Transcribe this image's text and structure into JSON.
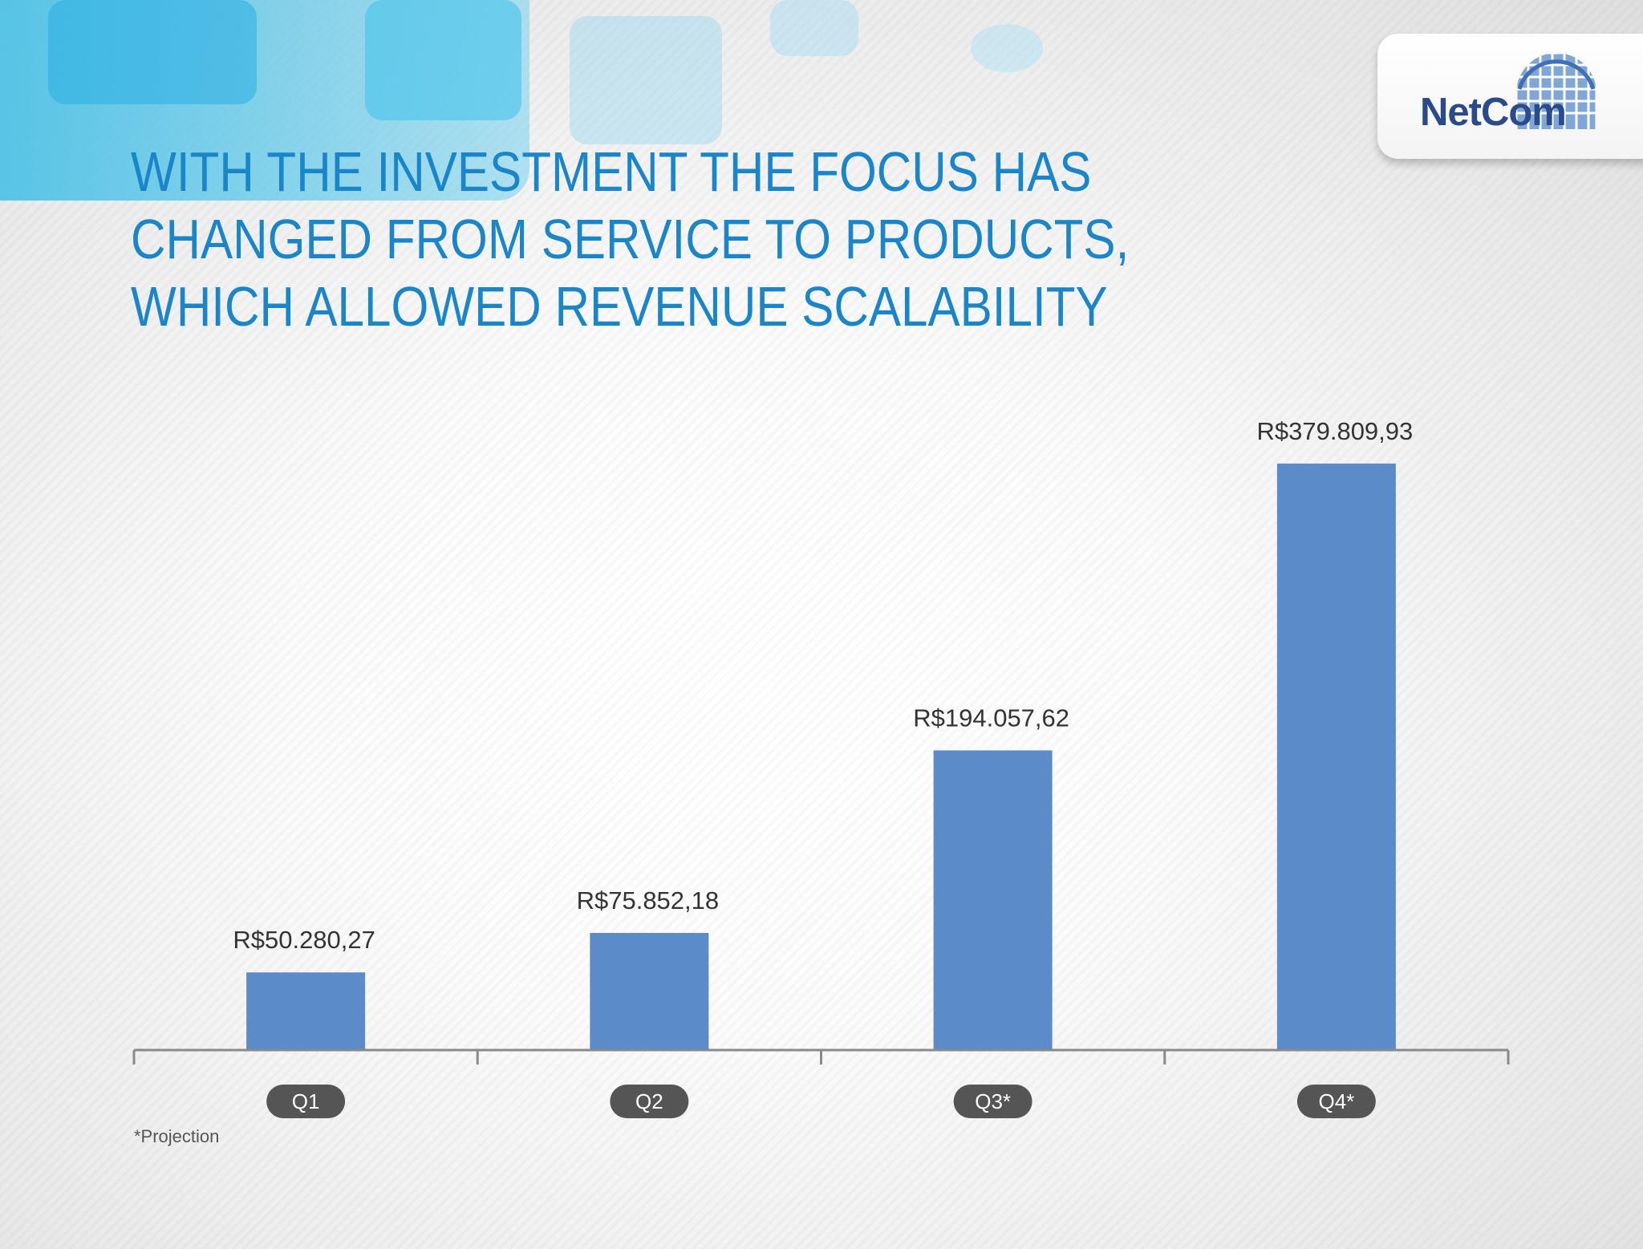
{
  "title_lines": [
    "WITH THE INVESTMENT THE FOCUS HAS",
    "CHANGED FROM SERVICE TO PRODUCTS,",
    "WHICH ALLOWED REVENUE SCALABILITY"
  ],
  "logo": {
    "text": "NetCom"
  },
  "footnote": "*Projection",
  "colors": {
    "bar": "#5b8bc9",
    "title": "#1a86c9",
    "category_pill": "#555555",
    "axis": "#8a8a8a"
  },
  "chart_data": {
    "type": "bar",
    "title": "WITH THE INVESTMENT THE FOCUS HAS CHANGED FROM SERVICE TO PRODUCTS, WHICH ALLOWED REVENUE SCALABILITY",
    "categories": [
      "Q1",
      "Q2",
      "Q3*",
      "Q4*"
    ],
    "values": [
      50280.27,
      75852.18,
      194057.62,
      379809.93
    ],
    "data_labels": [
      "R$50.280,27",
      "R$75.852,18",
      "R$194.057,62",
      "R$379.809,93"
    ],
    "xlabel": "",
    "ylabel": "",
    "ylim": [
      0,
      400000
    ],
    "grid": false,
    "legend": "none"
  }
}
